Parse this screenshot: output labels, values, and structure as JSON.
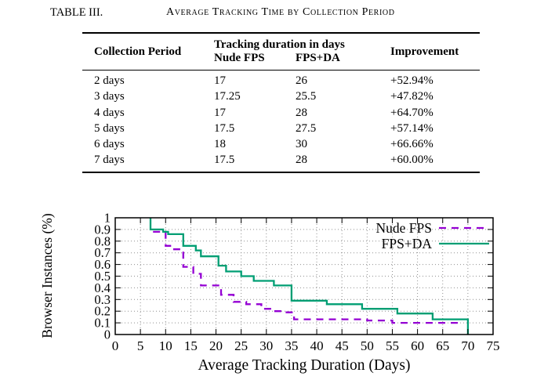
{
  "table_caption": {
    "label": "TABLE III.",
    "title": "Average Tracking Time by Collection Period"
  },
  "table": {
    "col1_header": "Collection Period",
    "span_header": "Tracking duration in days",
    "col2_header": "Nude FPS",
    "col3_header": "FPS+DA",
    "col4_header": "Improvement",
    "rows": [
      [
        "2 days",
        "17",
        "26",
        "+52.94%"
      ],
      [
        "3 days",
        "17.25",
        "25.5",
        "+47.82%"
      ],
      [
        "4 days",
        "17",
        "28",
        "+64.70%"
      ],
      [
        "5 days",
        "17.5",
        "27.5",
        "+57.14%"
      ],
      [
        "6 days",
        "18",
        "30",
        "+66.66%"
      ],
      [
        "7 days",
        "17.5",
        "28",
        "+60.00%"
      ]
    ]
  },
  "chart_data": {
    "type": "line",
    "subtype": "step",
    "title": "",
    "xlabel": "Average Tracking Duration (Days)",
    "ylabel": "Browser Instances (%)",
    "xlim": [
      0,
      75
    ],
    "ylim": [
      0,
      1
    ],
    "x_ticks": [
      0,
      5,
      10,
      15,
      20,
      25,
      30,
      35,
      40,
      45,
      50,
      55,
      60,
      65,
      70,
      75
    ],
    "y_ticks": [
      "0",
      "0.1",
      "0.2",
      "0.3",
      "0.4",
      "0.5",
      "0.6",
      "0.7",
      "0.8",
      "0.9",
      "1"
    ],
    "grid": true,
    "grid_color": "#909090",
    "legend_position": "top-right",
    "series": [
      {
        "name": "Nude FPS",
        "color": "#9400d3",
        "line_style": "dashed",
        "steps": [
          [
            7.5,
            0.88
          ],
          [
            10,
            0.76
          ],
          [
            11.5,
            0.73
          ],
          [
            13.5,
            0.58
          ],
          [
            15.5,
            0.52
          ],
          [
            17,
            0.42
          ],
          [
            21,
            0.34
          ],
          [
            23.5,
            0.28
          ],
          [
            26,
            0.26
          ],
          [
            29,
            0.22
          ],
          [
            31,
            0.2
          ],
          [
            33,
            0.19
          ],
          [
            35.5,
            0.13
          ],
          [
            50,
            0.12
          ],
          [
            55,
            0.1
          ],
          [
            68,
            0.1
          ]
        ]
      },
      {
        "name": "FPS+DA",
        "color": "#009e73",
        "line_style": "solid",
        "steps": [
          [
            7,
            1
          ],
          [
            7,
            0.9
          ],
          [
            9.5,
            0.88
          ],
          [
            10.5,
            0.86
          ],
          [
            13.5,
            0.76
          ],
          [
            16,
            0.72
          ],
          [
            17,
            0.67
          ],
          [
            20.5,
            0.59
          ],
          [
            22,
            0.54
          ],
          [
            25,
            0.5
          ],
          [
            27.5,
            0.46
          ],
          [
            31.5,
            0.42
          ],
          [
            35,
            0.29
          ],
          [
            42,
            0.26
          ],
          [
            49,
            0.22
          ],
          [
            56,
            0.18
          ],
          [
            63,
            0.13
          ],
          [
            70,
            0.13
          ],
          [
            70,
            0
          ]
        ]
      }
    ]
  }
}
